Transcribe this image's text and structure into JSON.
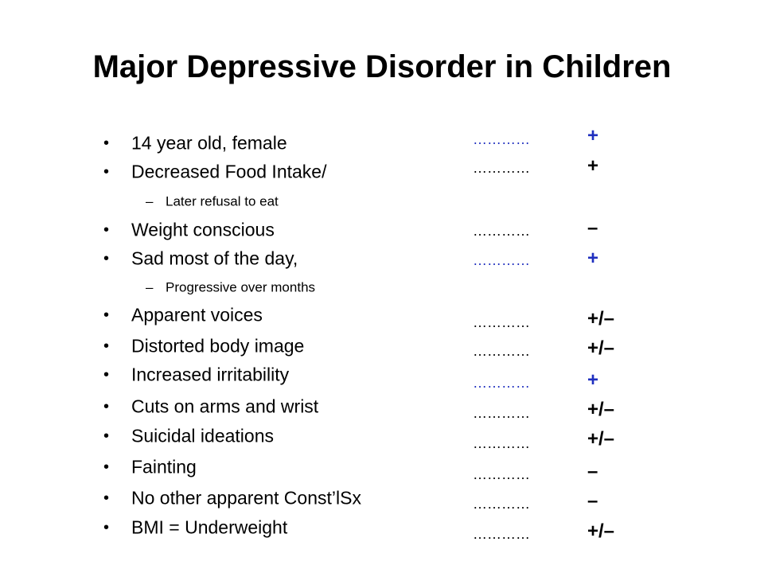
{
  "title": "Major Depressive Disorder in Children",
  "lines": [
    {
      "text": "14 year old, female",
      "level": 1
    },
    {
      "text": "Decreased Food Intake/",
      "level": 1
    },
    {
      "text": "Later refusal to eat",
      "level": 2
    },
    {
      "text": "Weight conscious",
      "level": 1
    },
    {
      "text": "Sad most of the day,",
      "level": 1
    },
    {
      "text": "Progressive over months",
      "level": 2
    },
    {
      "text": "Apparent voices",
      "level": 1
    },
    {
      "text": "Distorted body image",
      "level": 1
    },
    {
      "text": "Increased irritability",
      "level": 1
    },
    {
      "text": "Cuts on arms and wrist",
      "level": 1
    },
    {
      "text": "Suicidal ideations",
      "level": 1
    },
    {
      "text": "Fainting",
      "level": 1
    },
    {
      "text": "No other apparent Const’lSx",
      "level": 1
    },
    {
      "text": "BMI = Underweight",
      "level": 1
    }
  ],
  "rows": [
    {
      "dots": "…………",
      "sign": "+",
      "color": "#1f2fbf"
    },
    {
      "dots": "…………",
      "sign": "+",
      "color": "#000000"
    },
    {
      "dots": "…………",
      "sign": "–",
      "color": "#000000"
    },
    {
      "dots": "…………",
      "sign": "+",
      "color": "#1f2fbf"
    },
    {
      "dots": "…………",
      "sign": "+/–",
      "color": "#000000"
    },
    {
      "dots": "…………",
      "sign": "+/–",
      "color": "#000000"
    },
    {
      "dots": "…………",
      "sign": "+",
      "color": "#1f2fbf"
    },
    {
      "dots": "…………",
      "sign": "+/–",
      "color": "#000000"
    },
    {
      "dots": "…………",
      "sign": "+/–",
      "color": "#000000"
    },
    {
      "dots": "…………",
      "sign": "–",
      "color": "#000000"
    },
    {
      "dots": "…………",
      "sign": "–",
      "color": "#000000"
    },
    {
      "dots": "…………",
      "sign": "+/–",
      "color": "#000000"
    }
  ]
}
